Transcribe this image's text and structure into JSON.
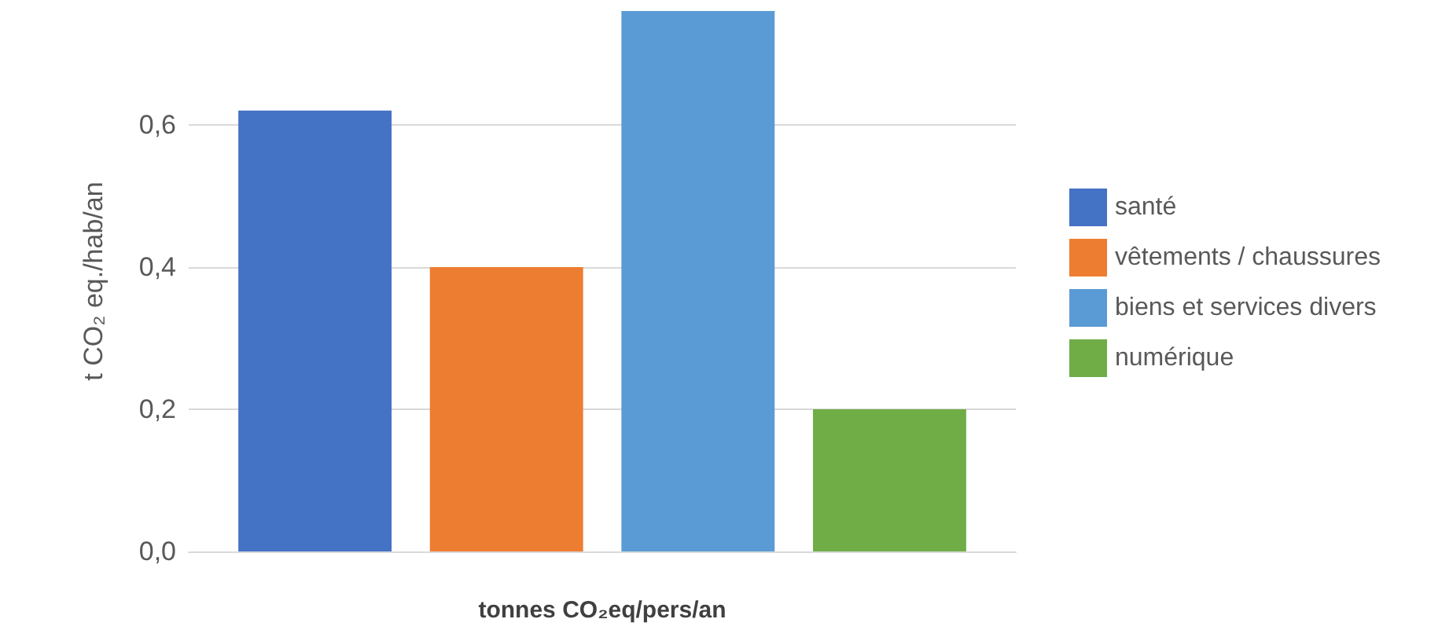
{
  "chart_data": {
    "type": "bar",
    "xlabel": "tonnes CO₂eq/pers/an",
    "ylabel": "t CO₂ eq./hab/an",
    "categories": [
      null
    ],
    "series": [
      {
        "name": "santé",
        "color": "#4472c4",
        "values": [
          0.62
        ]
      },
      {
        "name": "vêtements / chaussures",
        "color": "#ed7d31",
        "values": [
          0.4
        ]
      },
      {
        "name": "biens et services divers",
        "color": "#5b9bd5",
        "values": [
          0.76
        ]
      },
      {
        "name": "numérique",
        "color": "#70ad47",
        "values": [
          0.2
        ]
      }
    ],
    "ylim": [
      0,
      0.76
    ],
    "yticks": [
      {
        "value": 0,
        "label": "0,0"
      },
      {
        "value": 0.2,
        "label": "0,2"
      },
      {
        "value": 0.4,
        "label": "0,4"
      },
      {
        "value": 0.6,
        "label": "0,6"
      }
    ],
    "grid": "y",
    "legend": "right"
  }
}
